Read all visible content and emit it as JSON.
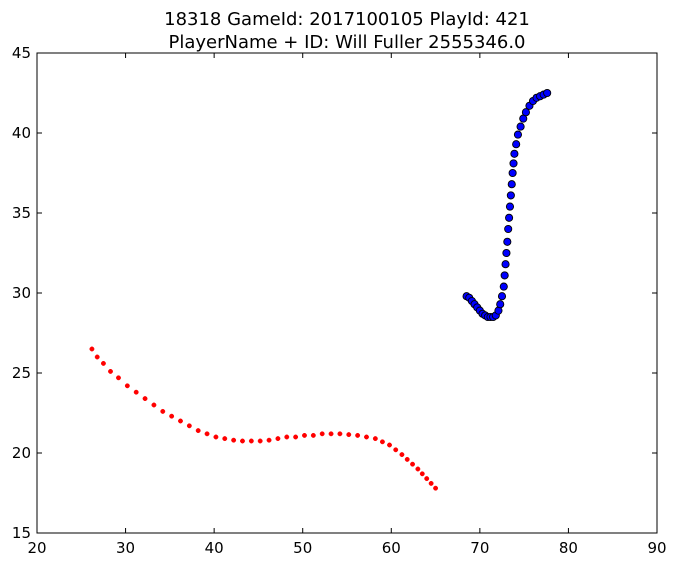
{
  "chart_data": {
    "type": "scatter",
    "title_line1": "18318 GameId: 2017100105 PlayId: 421",
    "title_line2": "PlayerName + ID: Will Fuller 2555346.0",
    "xlabel": "",
    "ylabel": "",
    "xlim": [
      20,
      90
    ],
    "ylim": [
      15,
      45
    ],
    "xticks": [
      20,
      30,
      40,
      50,
      60,
      70,
      80,
      90
    ],
    "yticks": [
      15,
      20,
      25,
      30,
      35,
      40,
      45
    ],
    "grid": false,
    "series": [
      {
        "marker": "circle-large",
        "color": "#0000ff",
        "edge_color": "#000000",
        "x": [
          68.5,
          68.8,
          69.1,
          69.4,
          69.7,
          70.0,
          70.3,
          70.6,
          70.9,
          71.2,
          71.5,
          71.8,
          72.1,
          72.3,
          72.5,
          72.7,
          72.8,
          72.9,
          73.0,
          73.1,
          73.2,
          73.3,
          73.4,
          73.5,
          73.6,
          73.7,
          73.8,
          73.9,
          74.1,
          74.3,
          74.6,
          74.9,
          75.2,
          75.6,
          76.0,
          76.4,
          76.8,
          77.2,
          77.6
        ],
        "y": [
          29.8,
          29.7,
          29.5,
          29.3,
          29.1,
          28.9,
          28.7,
          28.6,
          28.5,
          28.5,
          28.5,
          28.6,
          28.9,
          29.3,
          29.8,
          30.4,
          31.1,
          31.8,
          32.5,
          33.2,
          34.0,
          34.7,
          35.4,
          36.1,
          36.8,
          37.5,
          38.1,
          38.7,
          39.3,
          39.9,
          40.4,
          40.9,
          41.3,
          41.7,
          42.0,
          42.2,
          42.3,
          42.4,
          42.5
        ]
      },
      {
        "marker": "circle-small",
        "color": "#ff0000",
        "edge_color": "#ff0000",
        "x": [
          26.2,
          26.8,
          27.5,
          28.3,
          29.2,
          30.2,
          31.2,
          32.2,
          33.2,
          34.2,
          35.2,
          36.2,
          37.2,
          38.2,
          39.2,
          40.2,
          41.2,
          42.2,
          43.2,
          44.2,
          45.2,
          46.2,
          47.2,
          48.2,
          49.2,
          50.2,
          51.2,
          52.2,
          53.2,
          54.2,
          55.2,
          56.2,
          57.2,
          58.2,
          59.0,
          59.8,
          60.5,
          61.2,
          61.8,
          62.4,
          63.0,
          63.5,
          64.0,
          64.5,
          65.0
        ],
        "y": [
          26.5,
          26.0,
          25.6,
          25.1,
          24.7,
          24.2,
          23.8,
          23.4,
          23.0,
          22.6,
          22.3,
          22.0,
          21.7,
          21.4,
          21.2,
          21.0,
          20.9,
          20.8,
          20.75,
          20.75,
          20.75,
          20.8,
          20.9,
          21.0,
          21.0,
          21.1,
          21.1,
          21.2,
          21.2,
          21.2,
          21.15,
          21.1,
          21.0,
          20.9,
          20.7,
          20.5,
          20.2,
          19.9,
          19.6,
          19.3,
          19.0,
          18.7,
          18.4,
          18.1,
          17.8
        ]
      }
    ]
  }
}
